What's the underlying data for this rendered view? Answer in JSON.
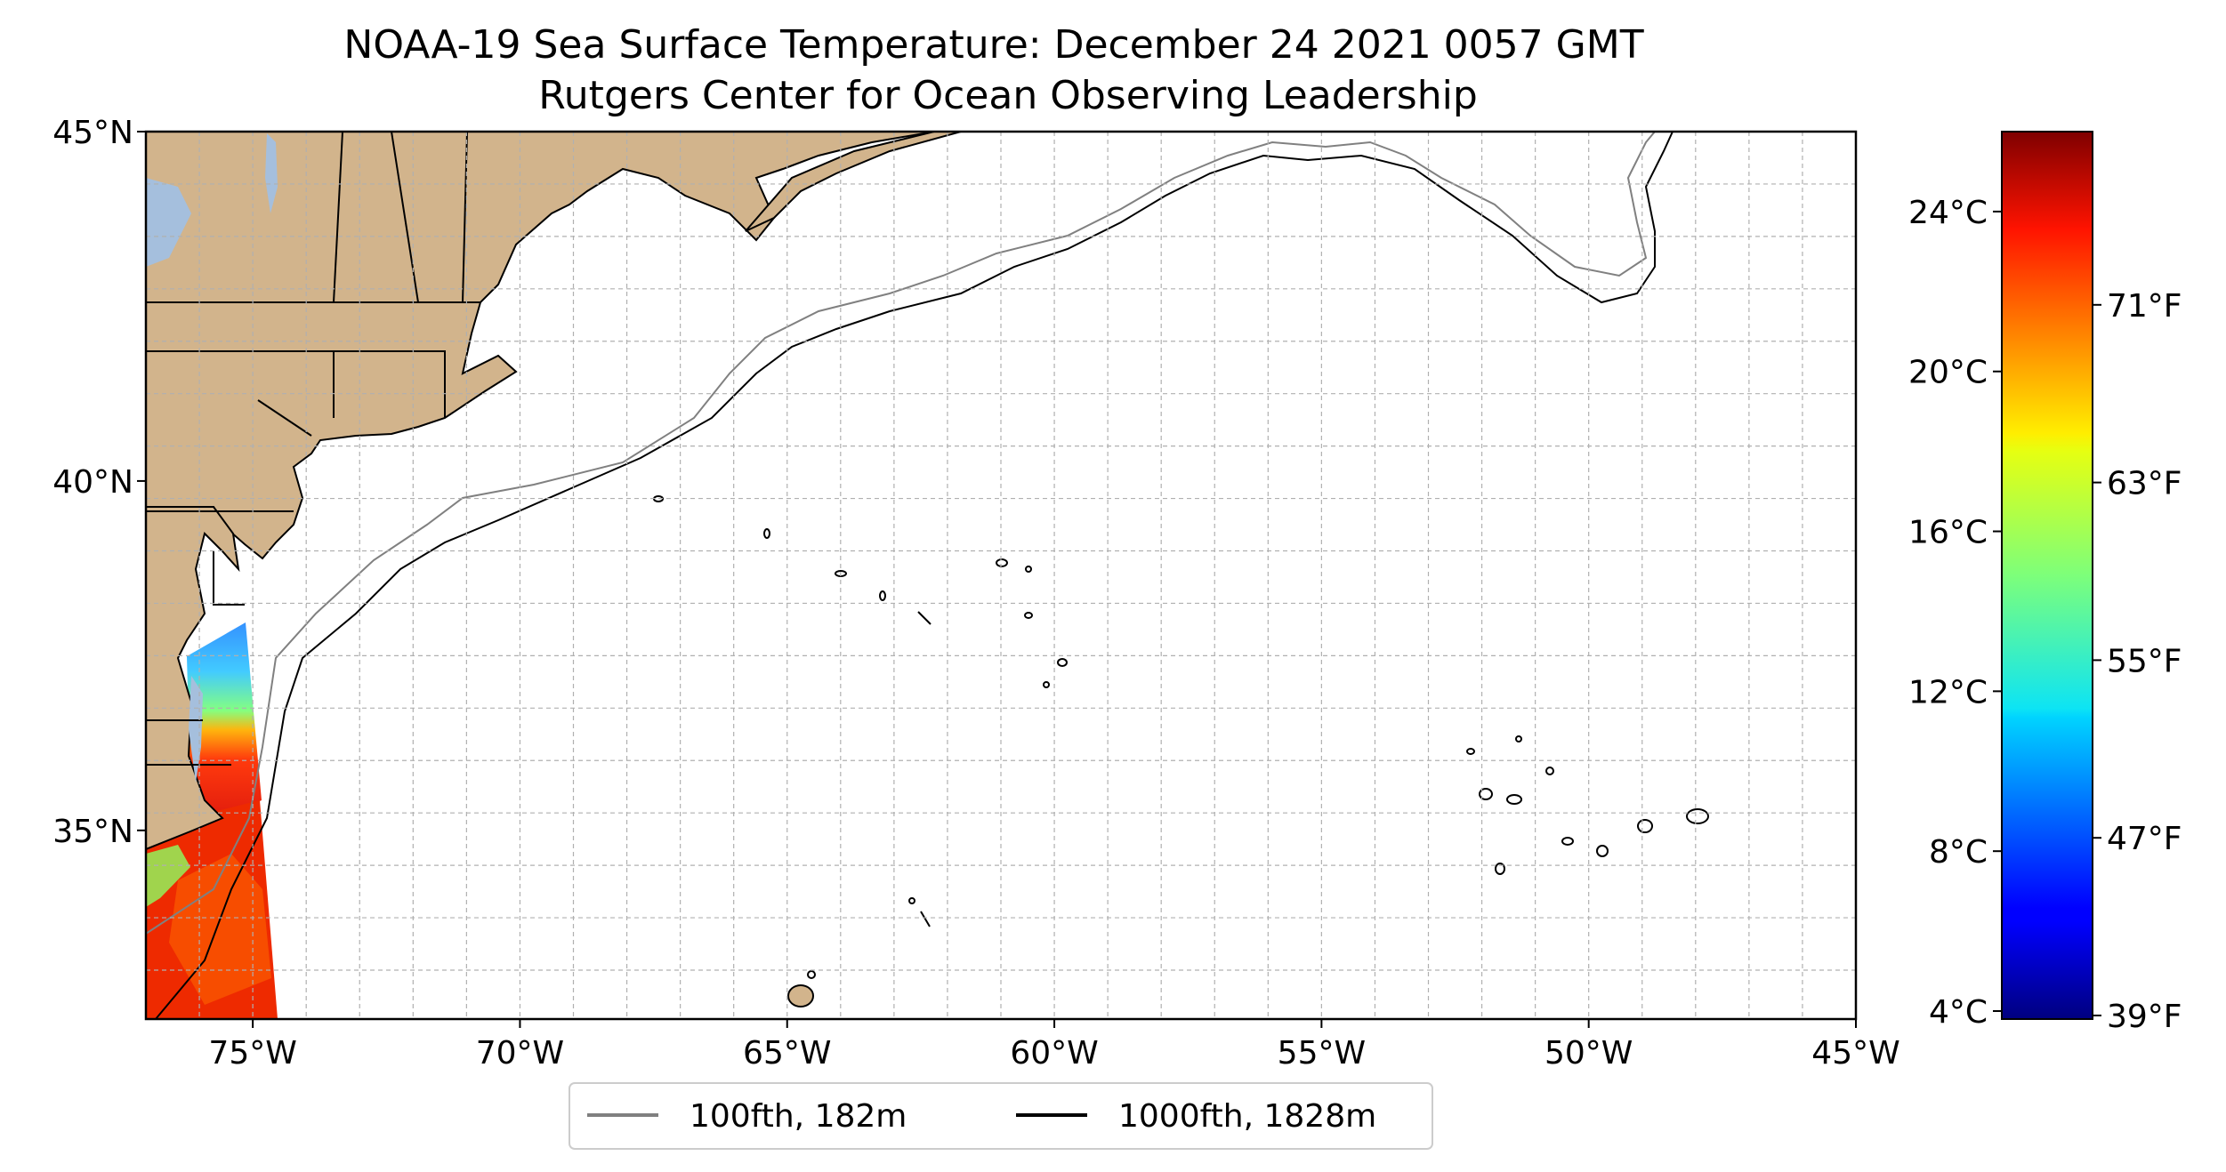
{
  "title": {
    "line1": "NOAA-19 Sea Surface Temperature: December 24 2021 0057 GMT",
    "line2": "Rutgers Center for Ocean Observing Leadership"
  },
  "map": {
    "lon_range": [
      -77,
      -45
    ],
    "lat_range": [
      32.3,
      45
    ],
    "lat_ticks": [
      {
        "value": 45,
        "label": "45°N"
      },
      {
        "value": 40,
        "label": "40°N"
      },
      {
        "value": 35,
        "label": "35°N"
      }
    ],
    "lon_ticks": [
      {
        "value": -75,
        "label": "75°W"
      },
      {
        "value": -70,
        "label": "70°W"
      },
      {
        "value": -65,
        "label": "65°W"
      },
      {
        "value": -60,
        "label": "60°W"
      },
      {
        "value": -55,
        "label": "55°W"
      },
      {
        "value": -50,
        "label": "50°W"
      },
      {
        "value": -45,
        "label": "45°W"
      }
    ],
    "land_color": "#d2b48c",
    "water_color": "#a5bfdd",
    "gridlines": true
  },
  "colorbar": {
    "colormap": "jet",
    "celsius_range": [
      3.8,
      26
    ],
    "celsius_ticks": [
      {
        "value": 24,
        "label": "24°C"
      },
      {
        "value": 20,
        "label": "20°C"
      },
      {
        "value": 16,
        "label": "16°C"
      },
      {
        "value": 12,
        "label": "12°C"
      },
      {
        "value": 8,
        "label": "8°C"
      },
      {
        "value": 4,
        "label": "4°C"
      }
    ],
    "fahrenheit_ticks": [
      {
        "value": 71,
        "label": "71°F"
      },
      {
        "value": 63,
        "label": "63°F"
      },
      {
        "value": 55,
        "label": "55°F"
      },
      {
        "value": 47,
        "label": "47°F"
      },
      {
        "value": 39,
        "label": "39°F"
      }
    ]
  },
  "legend": {
    "placement": "bottom-center",
    "items": [
      {
        "label": "100fth, 182m",
        "color": "#808080"
      },
      {
        "label": "1000fth, 1828m",
        "color": "#000000"
      }
    ]
  }
}
